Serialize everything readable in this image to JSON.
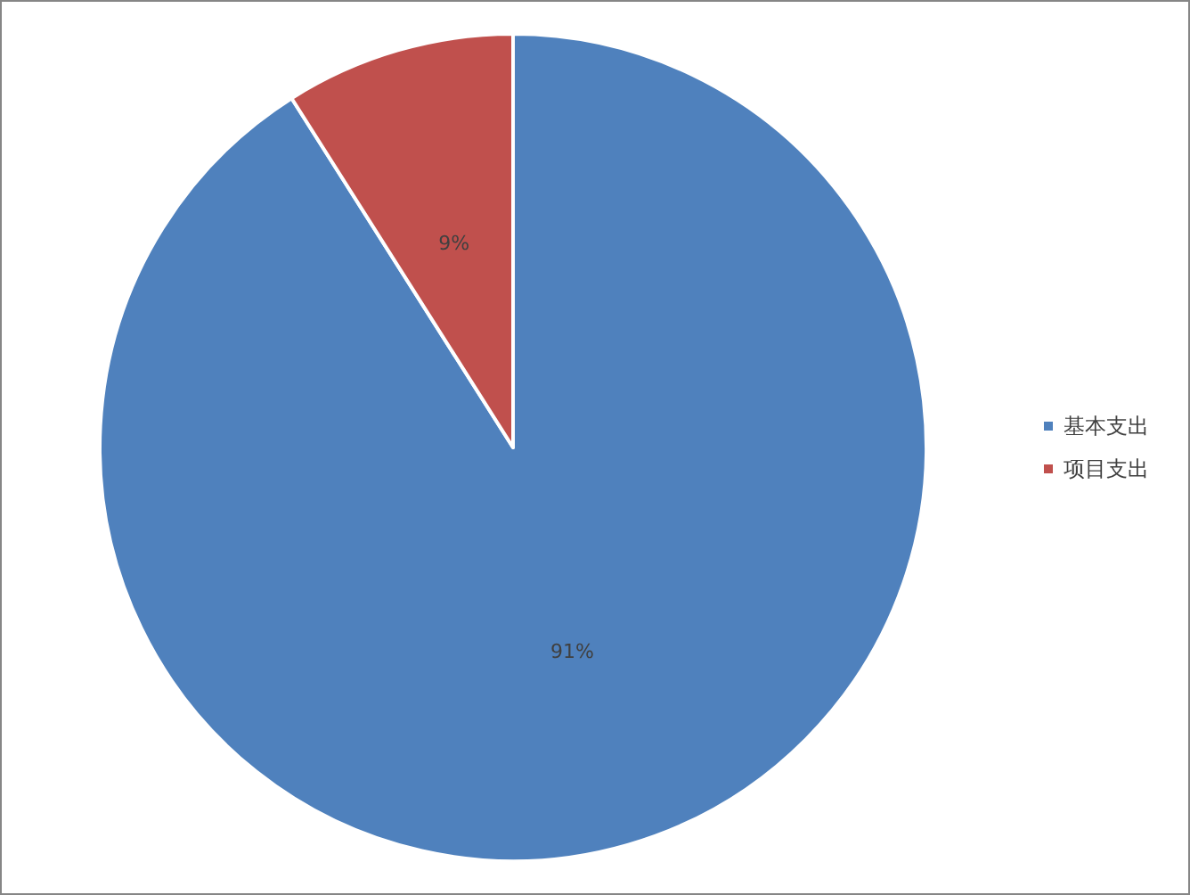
{
  "chart_data": {
    "type": "pie",
    "categories": [
      "基本支出",
      "项目支出"
    ],
    "values": [
      91,
      9
    ],
    "colors": [
      "#4f81bd",
      "#c0504d"
    ],
    "value_labels": [
      "91%",
      "9%"
    ],
    "legend": "right"
  }
}
